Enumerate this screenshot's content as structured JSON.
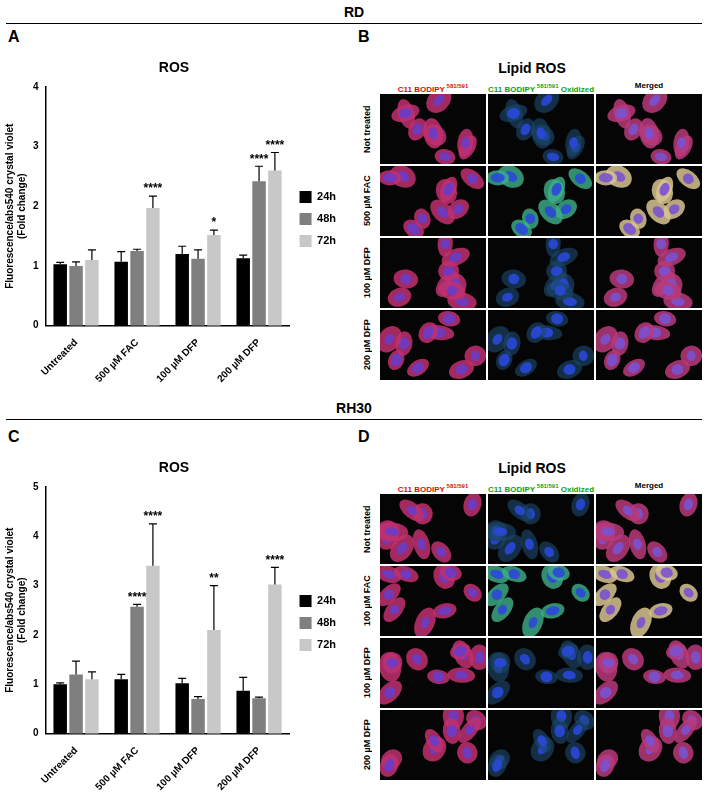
{
  "sections": [
    "RD",
    "RH30"
  ],
  "chart_data": [
    {
      "panel": "A",
      "type": "bar",
      "title": "ROS",
      "y_label": [
        "Fluorescence/abs540 crystal violet",
        "(Fold change)"
      ],
      "categories": [
        "Untreated",
        "500 µM FAC",
        "100 µM DFP",
        "200 µM DFP"
      ],
      "series": [
        {
          "name": "24h",
          "color": "#000000",
          "values": [
            1.03,
            1.07,
            1.2,
            1.13
          ],
          "errors": [
            0.03,
            0.17,
            0.13,
            0.05
          ],
          "significance": [
            null,
            null,
            null,
            null
          ]
        },
        {
          "name": "48h",
          "color": "#7f7f7f",
          "values": [
            1.0,
            1.25,
            1.12,
            2.42
          ],
          "errors": [
            0.07,
            0.03,
            0.15,
            0.25
          ],
          "significance": [
            null,
            null,
            null,
            "****"
          ]
        },
        {
          "name": "72h",
          "color": "#c8c8c8",
          "values": [
            1.1,
            1.97,
            1.52,
            2.6
          ],
          "errors": [
            0.17,
            0.2,
            0.08,
            0.3
          ],
          "significance": [
            null,
            "****",
            "*",
            "****"
          ]
        }
      ],
      "ylim": [
        0,
        4
      ],
      "yticks": [
        0,
        1,
        2,
        3,
        4
      ],
      "grid": false,
      "legend": "right"
    },
    {
      "panel": "C",
      "type": "bar",
      "title": "ROS",
      "y_label": [
        "Fluorescence/abs540 crystal violet",
        "(Fold change)"
      ],
      "categories": [
        "Untreated",
        "500 µM FAC",
        "100 µM DFP",
        "200 µM DFP"
      ],
      "series": [
        {
          "name": "24h",
          "color": "#000000",
          "values": [
            1.0,
            1.1,
            1.02,
            0.87
          ],
          "errors": [
            0.03,
            0.1,
            0.1,
            0.27
          ],
          "significance": [
            null,
            null,
            null,
            null
          ]
        },
        {
          "name": "48h",
          "color": "#7f7f7f",
          "values": [
            1.2,
            2.57,
            0.7,
            0.72
          ],
          "errors": [
            0.27,
            0.05,
            0.05,
            0.02
          ],
          "significance": [
            null,
            "****",
            null,
            null
          ]
        },
        {
          "name": "72h",
          "color": "#c8c8c8",
          "values": [
            1.1,
            3.4,
            2.1,
            3.02
          ],
          "errors": [
            0.15,
            0.85,
            0.9,
            0.35
          ],
          "significance": [
            null,
            "****",
            "**",
            "****"
          ]
        }
      ],
      "ylim": [
        0,
        5
      ],
      "yticks": [
        0,
        1,
        2,
        3,
        4,
        5
      ],
      "grid": false,
      "legend": "right"
    }
  ],
  "image_panels": [
    {
      "panel": "B",
      "title": "Lipid ROS",
      "columns": [
        {
          "text": "C11 BODIPY",
          "superscript": "581/591"
        },
        {
          "text": "C11 BODIPY",
          "superscript": "581/591",
          "suffix": "Oxidized"
        },
        {
          "text": "Merged"
        }
      ],
      "rows": [
        "Not treated",
        "500 µM FAC",
        "100 µM DFP",
        "200 µM DFP"
      ]
    },
    {
      "panel": "D",
      "title": "Lipid ROS",
      "columns": [
        {
          "text": "C11 BODIPY",
          "superscript": "581/591"
        },
        {
          "text": "C11 BODIPY",
          "superscript": "581/591",
          "suffix": "Oxidized"
        },
        {
          "text": "Merged"
        }
      ],
      "rows": [
        "Not treated",
        "100 µM FAC",
        "100 µM DFP",
        "200 µM DFP"
      ]
    }
  ]
}
